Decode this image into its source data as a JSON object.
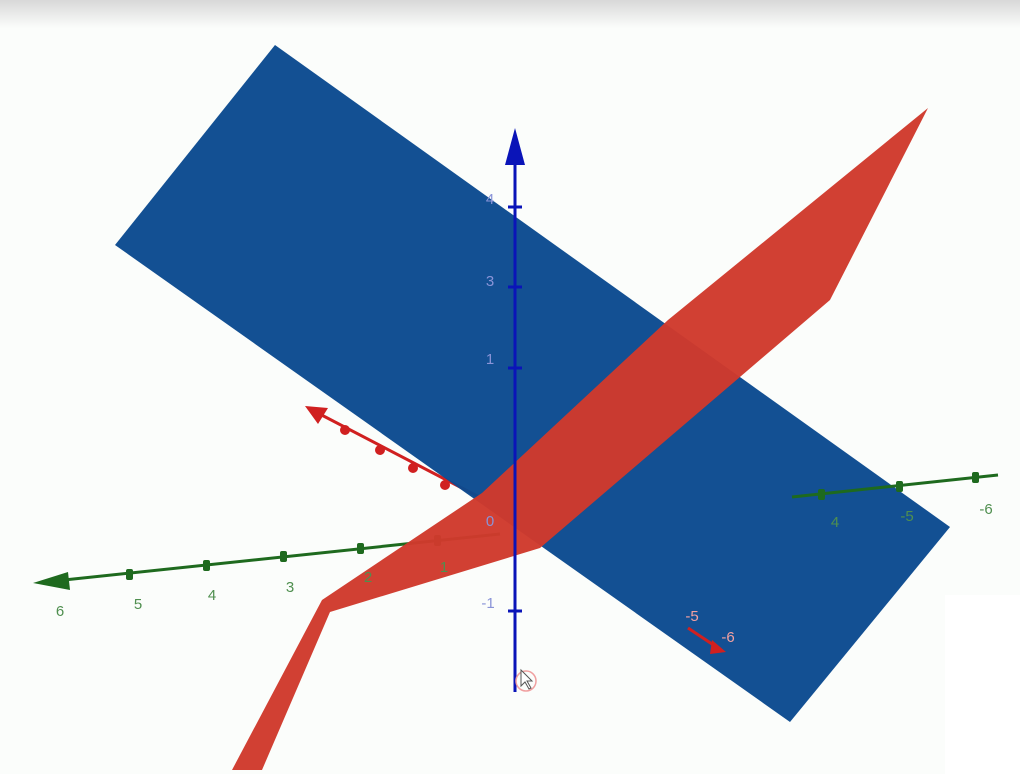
{
  "axes": {
    "z": {
      "labels": [
        "4",
        "3",
        "1",
        "0",
        "-1"
      ]
    },
    "green": {
      "labels": [
        "6",
        "5",
        "4",
        "3",
        "2",
        "1",
        "4",
        "-5",
        "-6"
      ]
    },
    "red": {
      "labels": [
        "-5",
        "-6"
      ]
    }
  }
}
